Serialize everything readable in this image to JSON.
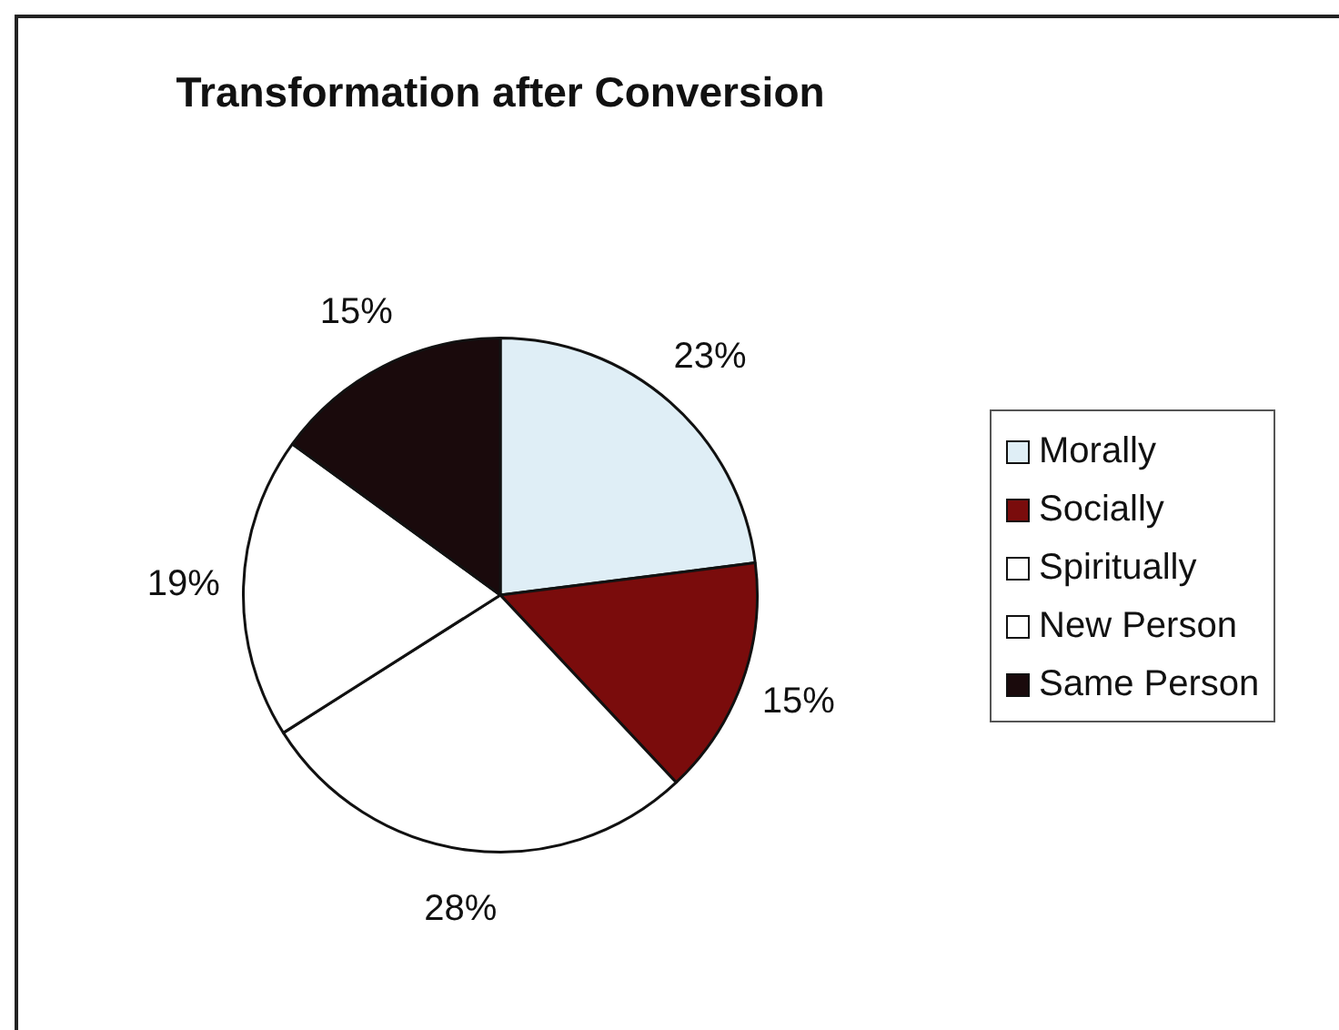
{
  "chart_data": {
    "type": "pie",
    "title": "Transformation after Conversion",
    "categories": [
      "Morally",
      "Socially",
      "Spiritually",
      "New Person",
      "Same Person"
    ],
    "values": [
      23,
      15,
      28,
      19,
      15
    ],
    "value_labels": [
      "23%",
      "15%",
      "28%",
      "19%",
      "15%"
    ],
    "colors": [
      "#dfeef6",
      "#7a0c0c",
      "#ffffff",
      "#ffffff",
      "#1a0a0c"
    ],
    "legend": "right"
  }
}
